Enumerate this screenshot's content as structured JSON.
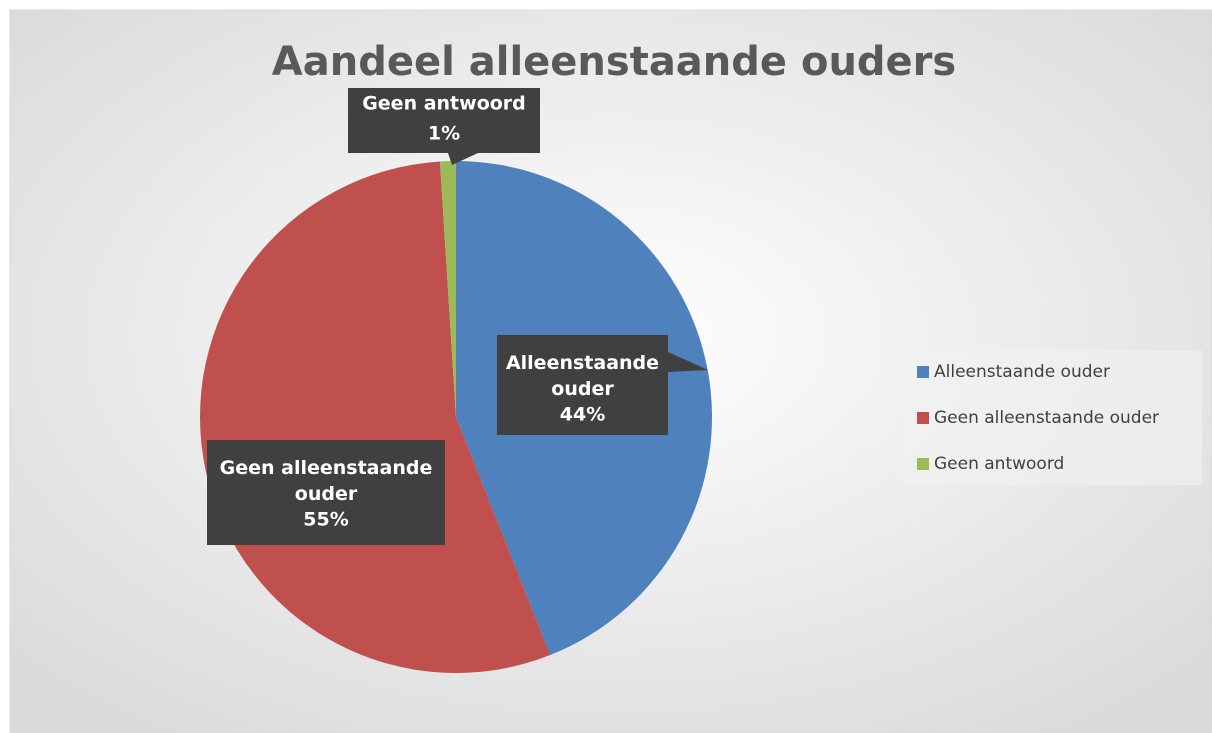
{
  "chart_data": {
    "type": "pie",
    "title": "Aandeel alleenstaande ouders",
    "categories": [
      "Alleenstaande ouder",
      "Geen alleenstaande ouder",
      "Geen antwoord"
    ],
    "values": [
      44,
      55,
      1
    ],
    "value_labels": [
      "44%",
      "55%",
      "1%"
    ],
    "colors": [
      "#4f81bd",
      "#c0504d",
      "#9bbb59"
    ],
    "legend": "right"
  }
}
